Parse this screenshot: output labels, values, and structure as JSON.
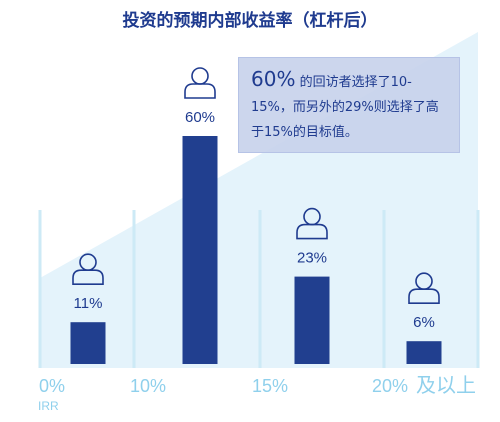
{
  "title": "投资的预期内部收益率（杠杆后）",
  "callout": {
    "highlight": "60%",
    "text": " 的回访者选择了10-15%，而另外的29%则选择了高于15%的目标值。"
  },
  "colors": {
    "bar": "#213f8f",
    "axis_text": "#8fd0ec",
    "background_wedge": "#e4f3fb",
    "gridline": "#cdeaf6",
    "icon": "#1f3b8f"
  },
  "chart_data": {
    "type": "bar",
    "title": "投资的预期内部收益率（杠杆后）",
    "categories": [
      "0%-10%",
      "10%-15%",
      "15%-20%",
      "20%及以上"
    ],
    "values": [
      11,
      60,
      23,
      6
    ],
    "value_labels": [
      "11%",
      "60%",
      "23%",
      "6%"
    ],
    "x_tick_labels": [
      "0%",
      "10%",
      "15%",
      "20%",
      "及以上"
    ],
    "x_axis_unit": "IRR",
    "ylim": [
      0,
      60
    ],
    "icon": "person-icon",
    "grid": true
  }
}
